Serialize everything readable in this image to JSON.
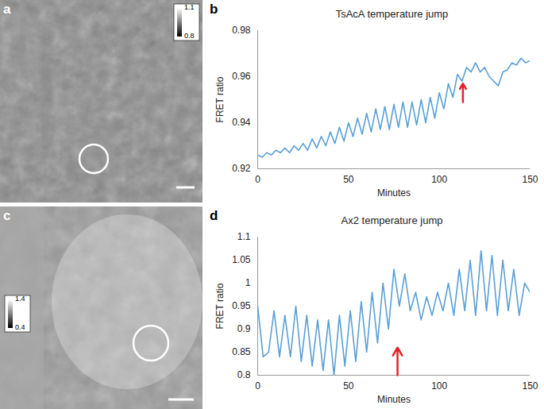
{
  "images": [
    {
      "panel": "a",
      "colorbar": {
        "range": [
          0.8,
          1.1
        ],
        "ticks": [
          0.8,
          1.1
        ]
      }
    },
    {
      "panel": "c",
      "colorbar": {
        "range": [
          0.4,
          1.4
        ],
        "ticks": [
          0.4,
          1.4
        ]
      }
    }
  ],
  "chart_data": [
    {
      "panel": "b",
      "type": "line",
      "title": "TsAcA temperature jump",
      "x_label": "Minutes",
      "y_label": "FRET ratio",
      "x": [
        0,
        2.5,
        5,
        7.5,
        10,
        12.5,
        15,
        17.5,
        20,
        22.5,
        25,
        27.5,
        30,
        32.5,
        35,
        37.5,
        40,
        42.5,
        45,
        47.5,
        50,
        52.5,
        55,
        57.5,
        60,
        62.5,
        65,
        67.5,
        70,
        72.5,
        75,
        77.5,
        80,
        82.5,
        85,
        87.5,
        90,
        92.5,
        95,
        97.5,
        100,
        102.5,
        105,
        107.5,
        110,
        112.5,
        115,
        117.5,
        120,
        122.5,
        125,
        127.5,
        130,
        132.5,
        135,
        137.5,
        140,
        142.5,
        145,
        147.5,
        150
      ],
      "values": [
        0.926,
        0.925,
        0.927,
        0.926,
        0.928,
        0.927,
        0.929,
        0.927,
        0.93,
        0.928,
        0.931,
        0.928,
        0.933,
        0.929,
        0.934,
        0.93,
        0.936,
        0.931,
        0.938,
        0.932,
        0.94,
        0.934,
        0.942,
        0.935,
        0.944,
        0.936,
        0.946,
        0.937,
        0.947,
        0.937,
        0.948,
        0.938,
        0.949,
        0.938,
        0.949,
        0.939,
        0.95,
        0.94,
        0.951,
        0.942,
        0.953,
        0.946,
        0.957,
        0.951,
        0.961,
        0.958,
        0.964,
        0.962,
        0.966,
        0.962,
        0.964,
        0.96,
        0.958,
        0.956,
        0.962,
        0.963,
        0.966,
        0.965,
        0.968,
        0.966,
        0.967
      ],
      "color": "#5a9fd6",
      "xlim": [
        0,
        150
      ],
      "xticks": [
        0,
        50,
        100,
        150
      ],
      "ylim": [
        0.92,
        0.98
      ],
      "yticks": [
        0.92,
        0.94,
        0.96,
        0.98
      ],
      "grid": false,
      "annotations": [
        {
          "type": "arrow",
          "x": 113,
          "y": [
            0.949,
            0.957
          ],
          "color": "#e3202a"
        }
      ]
    },
    {
      "panel": "d",
      "type": "line",
      "title": "Ax2 temperature jump",
      "x_label": "Minutes",
      "y_label": "FRET ratio",
      "x": [
        0,
        3,
        6,
        9,
        12,
        15,
        18,
        21,
        24,
        27,
        30,
        33,
        36,
        39,
        42,
        45,
        48,
        51,
        54,
        57,
        60,
        63,
        66,
        69,
        72,
        75,
        78,
        81,
        84,
        87,
        90,
        93,
        96,
        99,
        102,
        105,
        108,
        111,
        114,
        117,
        120,
        123,
        126,
        129,
        132,
        135,
        138,
        141,
        144,
        147,
        150
      ],
      "values": [
        0.95,
        0.84,
        0.85,
        0.94,
        0.84,
        0.93,
        0.84,
        0.95,
        0.83,
        0.93,
        0.82,
        0.92,
        0.81,
        0.92,
        0.8,
        0.93,
        0.82,
        0.94,
        0.83,
        0.96,
        0.85,
        0.98,
        0.87,
        1.0,
        0.9,
        1.03,
        0.95,
        1.02,
        0.94,
        0.98,
        0.92,
        0.97,
        0.93,
        0.98,
        0.94,
        1.0,
        0.93,
        1.03,
        0.94,
        1.05,
        0.93,
        1.07,
        0.94,
        1.06,
        0.93,
        1.05,
        0.94,
        1.03,
        0.93,
        1.0,
        0.98
      ],
      "color": "#5a9fd6",
      "xlim": [
        0,
        150
      ],
      "xticks": [
        0,
        50,
        100,
        150
      ],
      "ylim": [
        0.8,
        1.1
      ],
      "yticks": [
        0.8,
        0.85,
        0.9,
        0.95,
        1,
        1.05,
        1.1
      ],
      "grid": false,
      "annotations": [
        {
          "type": "arrow",
          "x": 77,
          "y": [
            0.8,
            0.86
          ],
          "color": "#e3202a"
        }
      ]
    }
  ]
}
